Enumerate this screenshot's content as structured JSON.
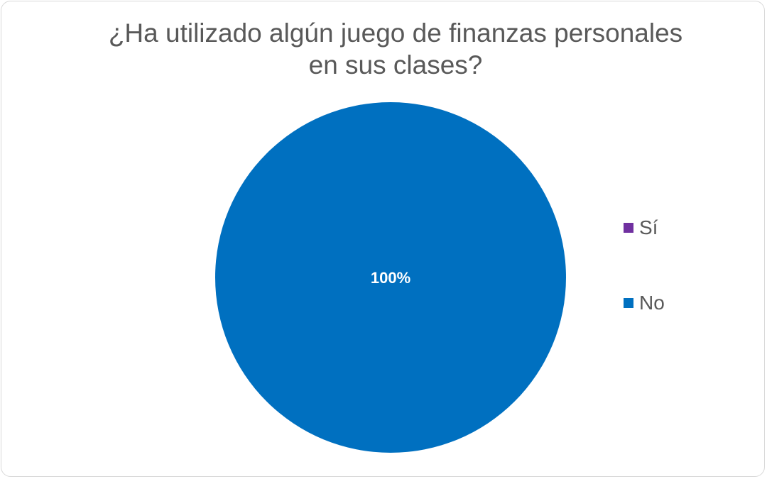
{
  "chart_data": {
    "type": "pie",
    "title": [
      "¿Ha utilizado algún juego de finanzas personales",
      "en sus clases?"
    ],
    "categories": [
      "Sí",
      "No"
    ],
    "values": [
      0,
      100
    ],
    "data_labels": [
      "",
      "100%"
    ],
    "colors": [
      "#7030A0",
      "#0070C0"
    ],
    "legend_position": "right"
  }
}
